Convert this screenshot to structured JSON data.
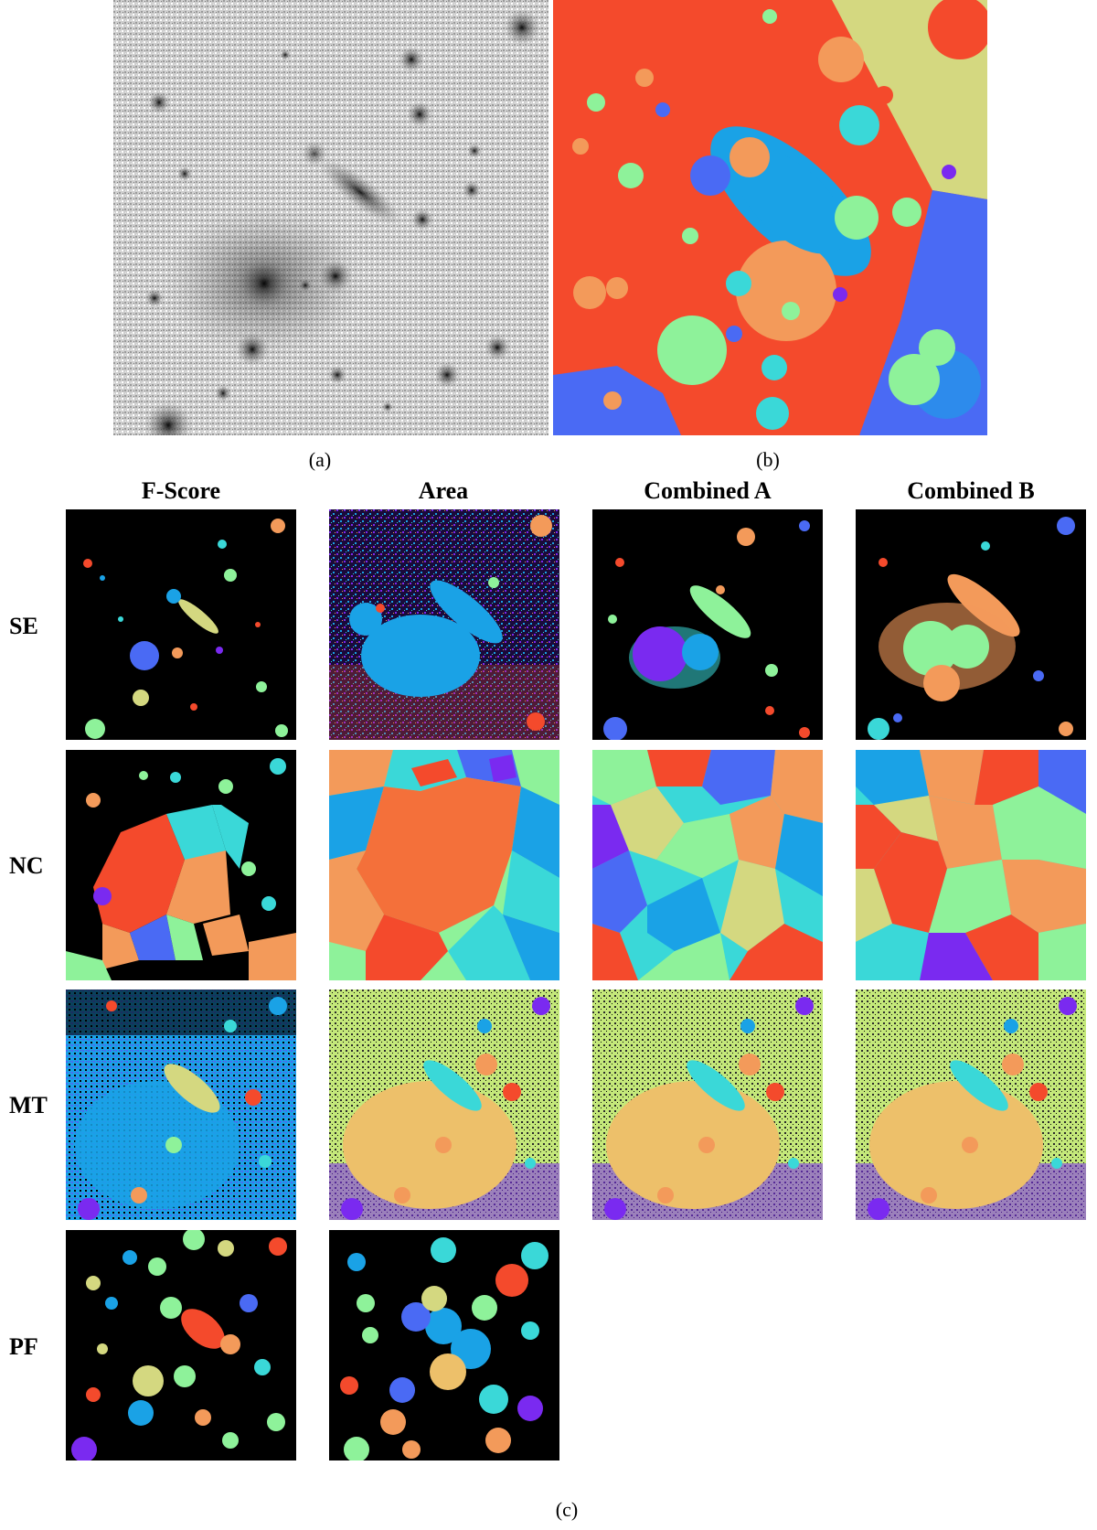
{
  "figure": {
    "label_a": "(a)",
    "label_b": "(b)",
    "label_c": "(c)"
  },
  "grid": {
    "columns": [
      "F-Score",
      "Area",
      "Combined A",
      "Combined B"
    ],
    "rows": [
      "SE",
      "NC",
      "MT",
      "PF"
    ]
  },
  "colors": {
    "red": "#f44a2c",
    "orange": "#f39a5a",
    "yellow": "#d4d880",
    "green": "#8ef29a",
    "cyan": "#3ad8d8",
    "blue": "#1aa2e6",
    "indigo": "#4a6af4",
    "violet": "#7a2af0",
    "black": "#000000"
  }
}
